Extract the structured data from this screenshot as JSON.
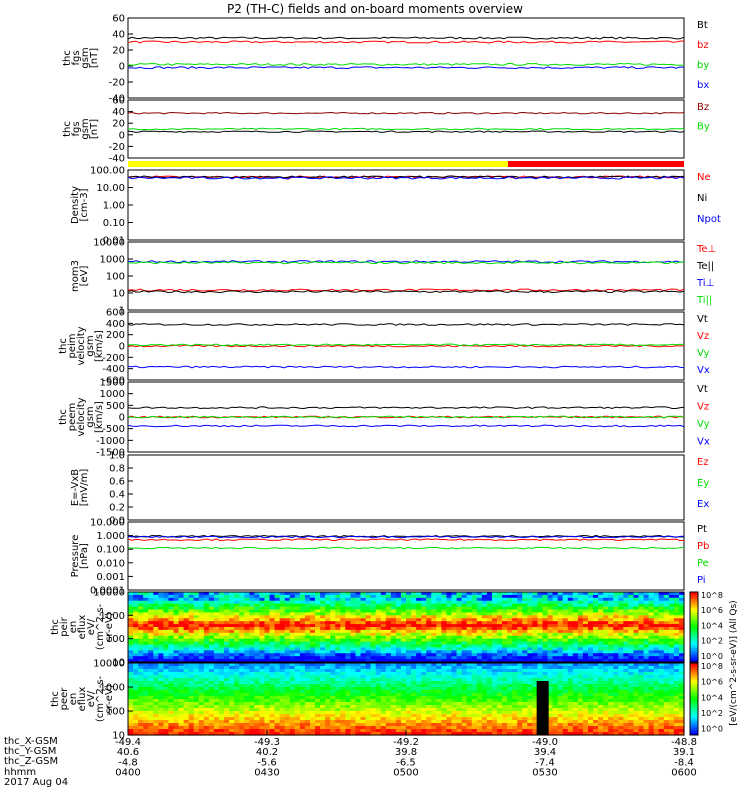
{
  "title": "P2 (TH-C) fields and on-board moments overview",
  "colors": {
    "black": "#000000",
    "red": "#ff0000",
    "green": "#00dd00",
    "blue": "#0000ff",
    "yellow": "#ffff00"
  },
  "chart_data": [
    {
      "type": "line",
      "ylabel": [
        "thc",
        "fgs",
        "gsm",
        "[nT]"
      ],
      "ylim": [
        -40,
        60
      ],
      "yticks": [
        "60",
        "40",
        "20",
        "0",
        "-20",
        "-40"
      ],
      "series": [
        {
          "name": "Bt",
          "color": "#000000",
          "level": 35
        },
        {
          "name": "bz",
          "color": "#ff0000",
          "level": 30
        },
        {
          "name": "by",
          "color": "#00dd00",
          "level": 2
        },
        {
          "name": "bx",
          "color": "#0000ff",
          "level": -2
        }
      ]
    },
    {
      "type": "line",
      "ylabel": [
        "thc",
        "fgs",
        "gsm",
        "[nT]"
      ],
      "ylim": [
        -50,
        60
      ],
      "yticks": [
        "60",
        "40",
        "20",
        "0",
        "-20",
        "-40"
      ],
      "series": [
        {
          "name": "Bz",
          "color": "#8b0000",
          "level": 35
        },
        {
          "name": "By",
          "color": "#00dd00",
          "level": 5
        },
        {
          "name": "",
          "color": "#000000",
          "level": 0
        }
      ]
    },
    {
      "type": "bar",
      "label": "",
      "segments": [
        {
          "from": -49.4,
          "to": -48.99,
          "color": "#ffff00"
        },
        {
          "from": -48.99,
          "to": -48.8,
          "color": "#ff0000"
        }
      ]
    },
    {
      "type": "line",
      "ylabel": [
        "Density",
        "[cm-3]"
      ],
      "scale": "log",
      "ylim": [
        0.01,
        100
      ],
      "yticks": [
        "100.00",
        "10.00",
        "1.00",
        "0.10",
        "0.01"
      ],
      "series": [
        {
          "name": "Ne",
          "color": "#ff0000",
          "level": 40
        },
        {
          "name": "Ni",
          "color": "#000000",
          "level": 40
        },
        {
          "name": "Npot",
          "color": "#0000ff",
          "level": 35
        }
      ]
    },
    {
      "type": "line",
      "ylabel": [
        "mom3",
        "[eV]"
      ],
      "scale": "log",
      "ylim": [
        1,
        10000
      ],
      "yticks": [
        "10000",
        "1000",
        "100",
        "10",
        "1"
      ],
      "series": [
        {
          "name": "Te⊥",
          "color": "#ff0000",
          "level": 15
        },
        {
          "name": "Te||",
          "color": "#000000",
          "level": 12
        },
        {
          "name": "Ti⊥",
          "color": "#0000ff",
          "level": 700
        },
        {
          "name": "Ti||",
          "color": "#00dd00",
          "level": 600
        }
      ]
    },
    {
      "type": "line",
      "ylabel": [
        "thc",
        "peim",
        "velocity",
        "gsm",
        "[km/s]"
      ],
      "ylim": [
        -600,
        600
      ],
      "yticks": [
        "600",
        "400",
        "200",
        "0",
        "-200",
        "-400",
        "-600"
      ],
      "series": [
        {
          "name": "Vt",
          "color": "#000000",
          "level": 380
        },
        {
          "name": "Vz",
          "color": "#ff0000",
          "level": 0
        },
        {
          "name": "Vy",
          "color": "#00dd00",
          "level": 20
        },
        {
          "name": "Vx",
          "color": "#0000ff",
          "level": -370
        }
      ]
    },
    {
      "type": "line",
      "ylabel": [
        "thc",
        "peem",
        "velocity",
        "gsm",
        "[km/s]"
      ],
      "ylim": [
        -1500,
        1500
      ],
      "yticks": [
        "1500",
        "1000",
        "500",
        "0",
        "-500",
        "-1000",
        "-1500"
      ],
      "series": [
        {
          "name": "Vt",
          "color": "#000000",
          "level": 400
        },
        {
          "name": "Vz",
          "color": "#ff0000",
          "level": 0
        },
        {
          "name": "Vy",
          "color": "#00dd00",
          "level": 0
        },
        {
          "name": "Vx",
          "color": "#0000ff",
          "level": -380
        }
      ]
    },
    {
      "type": "line",
      "ylabel": [
        "E=-VxB",
        "[mV/m]"
      ],
      "ylim": [
        0,
        1
      ],
      "yticks": [
        "1.0",
        "0.8",
        "0.6",
        "0.4",
        "0.2",
        "0.0"
      ],
      "series": [
        {
          "name": "Ez",
          "color": "#ff0000"
        },
        {
          "name": "Ey",
          "color": "#00dd00"
        },
        {
          "name": "Ex",
          "color": "#0000ff"
        }
      ]
    },
    {
      "type": "line",
      "ylabel": [
        "Pressure",
        "[nPa]"
      ],
      "scale": "log",
      "ylim": [
        0.0001,
        10
      ],
      "yticks": [
        "10.000",
        "1.000",
        "0.100",
        "0.010",
        "0.001",
        "0.0001"
      ],
      "series": [
        {
          "name": "Pt",
          "color": "#000000",
          "level": 0.9
        },
        {
          "name": "Pb",
          "color": "#ff0000",
          "level": 0.5
        },
        {
          "name": "Pe",
          "color": "#00dd00",
          "level": 0.12
        },
        {
          "name": "Pi",
          "color": "#0000ff",
          "level": 0.8
        }
      ]
    },
    {
      "type": "heatmap",
      "ylabel": [
        "thc",
        "peir",
        "en",
        "eflux",
        "eV/",
        "(cm^2-s-",
        "sr-eV)"
      ],
      "scale": "log",
      "ylim": [
        5,
        25000
      ],
      "yticks": [
        "10000",
        "1000",
        "100",
        "10"
      ]
    },
    {
      "type": "heatmap",
      "ylabel": [
        "thc",
        "peer",
        "en",
        "eflux",
        "eV/",
        "(cm^2-s-",
        "sr-eV)"
      ],
      "scale": "log",
      "ylim": [
        5,
        25000
      ],
      "yticks": [
        "10000",
        "1000",
        "100",
        "10"
      ]
    }
  ],
  "colorbar": {
    "ticks": [
      "10^8",
      "10^6",
      "10^4",
      "10^2",
      "10^0",
      "10^8",
      "10^6",
      "10^4",
      "10^2",
      "10^0"
    ],
    "label": "[eV/(cm^2-s-sr-eV)] (All Qs)"
  },
  "xaxis": {
    "rows": [
      {
        "label": "thc_X-GSM",
        "values": [
          "-49.4",
          "-49.3",
          "-49.2",
          "-49.0",
          "-48.8"
        ]
      },
      {
        "label": "thc_Y-GSM",
        "values": [
          "40.6",
          "40.2",
          "39.8",
          "39.4",
          "39.1"
        ]
      },
      {
        "label": "thc_Z-GSM",
        "values": [
          "-4.8",
          "-5.6",
          "-6.5",
          "-7.4",
          "-8.4"
        ]
      },
      {
        "label": "hhmm",
        "values": [
          "0400",
          "0430",
          "0500",
          "0530",
          "0600"
        ]
      }
    ],
    "date": "2017 Aug 04"
  }
}
